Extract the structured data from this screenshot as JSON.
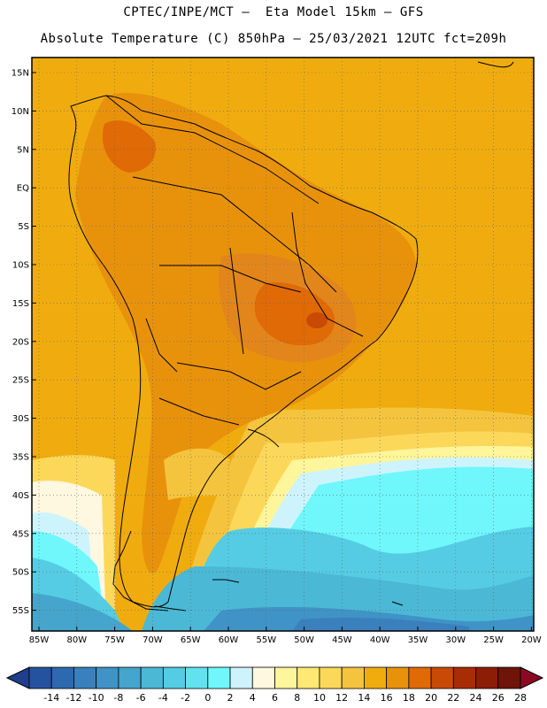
{
  "title": {
    "line1": "CPTEC/INPE/MCT –  Eta Model 15km – GFS",
    "line2": "Absolute Temperature (C) 850hPa – 25/03/2021 12UTC fct=209h"
  },
  "latitude_labels": [
    "15N",
    "10N",
    "5N",
    "EQ",
    "5S",
    "10S",
    "15S",
    "20S",
    "25S",
    "30S",
    "35S",
    "40S",
    "45S",
    "50S",
    "55S"
  ],
  "longitude_labels": [
    "85W",
    "80W",
    "75W",
    "70W",
    "65W",
    "60W",
    "55W",
    "50W",
    "45W",
    "40W",
    "35W",
    "30W",
    "25W",
    "20W"
  ],
  "colorbar": {
    "labels": [
      "-14",
      "-12",
      "-10",
      "-8",
      "-6",
      "-4",
      "-2",
      "0",
      "2",
      "4",
      "6",
      "8",
      "10",
      "12",
      "14",
      "16",
      "18",
      "20",
      "22",
      "24",
      "26",
      "28"
    ],
    "colors": [
      "#1f3e8c",
      "#25529f",
      "#2c69ae",
      "#3a80bd",
      "#3f93c6",
      "#45a5cc",
      "#4bb8d6",
      "#55cce3",
      "#62e2f0",
      "#6ff7fb",
      "#cdf4fc",
      "#fff8e0",
      "#fff59a",
      "#ffe873",
      "#fcd85a",
      "#f5c43e",
      "#f0ac0f",
      "#e8920c",
      "#e06a06",
      "#c84a05",
      "#a82c06",
      "#8c1d07",
      "#6e1408",
      "#8b0a22"
    ]
  },
  "colors": {
    "land_hot": "#e2861c",
    "ocean_warm": "#f2b21e",
    "ocean_cold": "#3aafcf",
    "coast": "#000000"
  }
}
